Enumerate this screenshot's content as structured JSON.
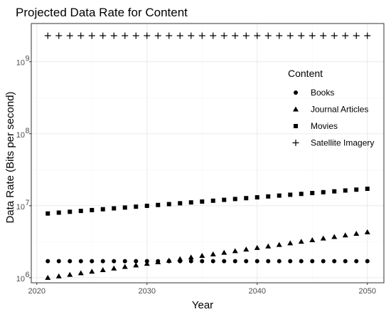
{
  "chart_data": {
    "type": "scatter",
    "title": "Projected Data Rate for Content",
    "xlabel": "Year",
    "ylabel": "Data Rate (Bits per second)",
    "yscale": "log10",
    "xlim": [
      2019.5,
      2051.5
    ],
    "ylim": [
      850000,
      3400000000
    ],
    "x_ticks": [
      2020,
      2030,
      2040,
      2050
    ],
    "x_tick_labels": [
      "2020",
      "2030",
      "2040",
      "2050"
    ],
    "y_ticks": [
      1000000,
      10000000,
      100000000,
      1000000000
    ],
    "y_tick_labels": [
      {
        "base": "10",
        "exp": "6"
      },
      {
        "base": "10",
        "exp": "7"
      },
      {
        "base": "10",
        "exp": "8"
      },
      {
        "base": "10",
        "exp": "9"
      }
    ],
    "grid": true,
    "legend": {
      "title": "Content",
      "position": "right-inside"
    },
    "x": [
      2021,
      2022,
      2023,
      2024,
      2025,
      2026,
      2027,
      2028,
      2029,
      2030,
      2031,
      2032,
      2033,
      2034,
      2035,
      2036,
      2037,
      2038,
      2039,
      2040,
      2041,
      2042,
      2043,
      2044,
      2045,
      2046,
      2047,
      2048,
      2049,
      2050
    ],
    "series": [
      {
        "name": "Books",
        "marker": "circle",
        "values": [
          1700000,
          1700000,
          1700000,
          1700000,
          1700000,
          1700000,
          1700000,
          1700000,
          1700000,
          1700000,
          1700000,
          1700000,
          1700000,
          1700000,
          1700000,
          1700000,
          1700000,
          1700000,
          1700000,
          1700000,
          1700000,
          1700000,
          1700000,
          1700000,
          1700000,
          1700000,
          1700000,
          1700000,
          1700000,
          1700000
        ]
      },
      {
        "name": "Journal Articles",
        "marker": "triangle",
        "values": [
          1000000,
          1050000,
          1100000,
          1160000,
          1220000,
          1280000,
          1350000,
          1420000,
          1490000,
          1570000,
          1650000,
          1730000,
          1820000,
          1920000,
          2020000,
          2120000,
          2230000,
          2350000,
          2470000,
          2600000,
          2730000,
          2870000,
          3020000,
          3180000,
          3340000,
          3520000,
          3700000,
          3890000,
          4090000,
          4300000
        ]
      },
      {
        "name": "Movies",
        "marker": "square",
        "values": [
          7800000,
          8020000,
          8240000,
          8470000,
          8700000,
          8940000,
          9190000,
          9440000,
          9700000,
          9970000,
          10250000,
          10530000,
          10820000,
          11120000,
          11430000,
          11740000,
          12070000,
          12400000,
          12740000,
          13090000,
          13460000,
          13830000,
          14210000,
          14600000,
          15000000,
          15420000,
          15840000,
          16280000,
          16730000,
          17200000
        ]
      },
      {
        "name": "Satellite Imagery",
        "marker": "plus",
        "values": [
          2300000000,
          2300000000,
          2300000000,
          2300000000,
          2300000000,
          2300000000,
          2300000000,
          2300000000,
          2300000000,
          2300000000,
          2300000000,
          2300000000,
          2300000000,
          2300000000,
          2300000000,
          2300000000,
          2300000000,
          2300000000,
          2300000000,
          2300000000,
          2300000000,
          2300000000,
          2300000000,
          2300000000,
          2300000000,
          2300000000,
          2300000000,
          2300000000,
          2300000000,
          2300000000
        ]
      }
    ],
    "colors": {
      "background": "#ffffff",
      "grid_major": "#ebebeb",
      "grid_minor": "#f5f5f5",
      "border": "#333333",
      "marker": "#000000",
      "tick_label": "#4d4d4d"
    }
  }
}
